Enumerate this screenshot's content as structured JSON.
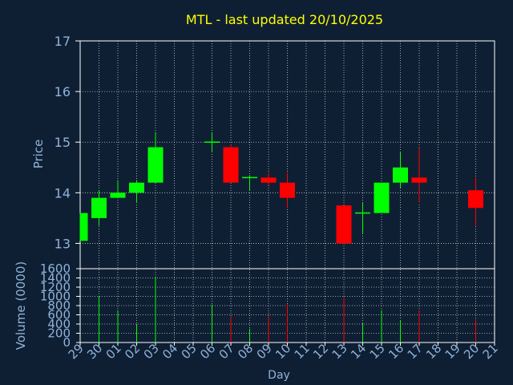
{
  "colors": {
    "background": "#0f1f33",
    "title": "#ffff00",
    "axis_text": "#8fb3d9",
    "grid": "#ffffff",
    "frame": "#ffffff",
    "up": "#00ff00",
    "down": "#ff0000"
  },
  "chart_data": [
    {
      "type": "candlestick",
      "title": "MTL - last updated 20/10/2025",
      "ylabel": "Price",
      "ylim": [
        12.5,
        17
      ],
      "yticks": [
        13,
        14,
        15,
        16,
        17
      ],
      "grid": true,
      "candles": [
        {
          "day": "29",
          "open": 13.05,
          "high": 13.6,
          "low": 13.05,
          "close": 13.6
        },
        {
          "day": "30",
          "open": 13.5,
          "high": 14.05,
          "low": 13.35,
          "close": 13.9
        },
        {
          "day": "01",
          "open": 13.9,
          "high": 14.25,
          "low": 13.9,
          "close": 14.0
        },
        {
          "day": "02",
          "open": 14.0,
          "high": 14.25,
          "low": 13.8,
          "close": 14.2
        },
        {
          "day": "03",
          "open": 14.2,
          "high": 15.2,
          "low": 14.2,
          "close": 14.9
        },
        {
          "day": "06",
          "open": 15.0,
          "high": 15.2,
          "low": 14.8,
          "close": 15.0
        },
        {
          "day": "07",
          "open": 14.9,
          "high": 14.95,
          "low": 14.2,
          "close": 14.2
        },
        {
          "day": "08",
          "open": 14.3,
          "high": 14.35,
          "low": 14.05,
          "close": 14.3
        },
        {
          "day": "09",
          "open": 14.3,
          "high": 14.4,
          "low": 14.15,
          "close": 14.2
        },
        {
          "day": "10",
          "open": 14.2,
          "high": 14.4,
          "low": 13.7,
          "close": 13.9
        },
        {
          "day": "13",
          "open": 13.75,
          "high": 13.75,
          "low": 13.0,
          "close": 13.0
        },
        {
          "day": "14",
          "open": 13.6,
          "high": 13.8,
          "low": 13.2,
          "close": 13.6
        },
        {
          "day": "15",
          "open": 13.6,
          "high": 14.2,
          "low": 13.6,
          "close": 14.2
        },
        {
          "day": "16",
          "open": 14.2,
          "high": 14.8,
          "low": 14.1,
          "close": 14.5
        },
        {
          "day": "17",
          "open": 14.3,
          "high": 14.9,
          "low": 13.8,
          "close": 14.2
        },
        {
          "day": "20",
          "open": 14.05,
          "high": 14.3,
          "low": 13.35,
          "close": 13.7
        }
      ]
    },
    {
      "type": "bar",
      "ylabel": "Volume (0000)",
      "xlabel": "Day",
      "ylim": [
        0,
        1600
      ],
      "yticks": [
        0,
        200,
        400,
        600,
        800,
        1000,
        1200,
        1400,
        1600
      ],
      "grid": true,
      "categories": [
        "29",
        "30",
        "01",
        "02",
        "03",
        "04",
        "05",
        "06",
        "07",
        "08",
        "09",
        "10",
        "11",
        "12",
        "13",
        "14",
        "15",
        "16",
        "17",
        "18",
        "19",
        "20",
        "21"
      ],
      "values": [
        {
          "day": "29",
          "value": 0,
          "color": "up"
        },
        {
          "day": "30",
          "value": 1000,
          "color": "up"
        },
        {
          "day": "01",
          "value": 700,
          "color": "up"
        },
        {
          "day": "02",
          "value": 400,
          "color": "up"
        },
        {
          "day": "03",
          "value": 1430,
          "color": "up"
        },
        {
          "day": "06",
          "value": 820,
          "color": "up"
        },
        {
          "day": "07",
          "value": 560,
          "color": "down"
        },
        {
          "day": "08",
          "value": 300,
          "color": "up"
        },
        {
          "day": "09",
          "value": 560,
          "color": "down"
        },
        {
          "day": "10",
          "value": 830,
          "color": "down"
        },
        {
          "day": "13",
          "value": 970,
          "color": "down"
        },
        {
          "day": "14",
          "value": 420,
          "color": "up"
        },
        {
          "day": "15",
          "value": 700,
          "color": "up"
        },
        {
          "day": "16",
          "value": 480,
          "color": "up"
        },
        {
          "day": "17",
          "value": 690,
          "color": "down"
        },
        {
          "day": "20",
          "value": 500,
          "color": "down"
        }
      ]
    }
  ]
}
